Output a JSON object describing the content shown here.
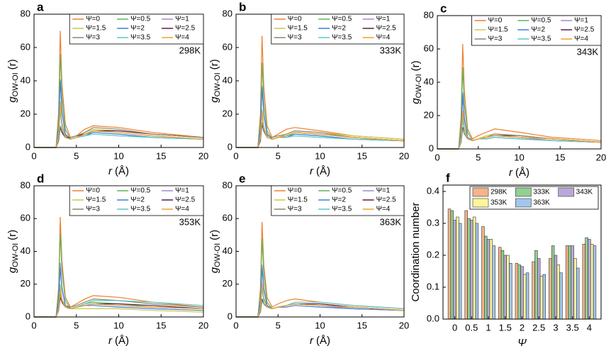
{
  "chart_data": [
    {
      "type": "line",
      "panel_label": "a",
      "annotation": "298K",
      "x_label": {
        "symbol": "r",
        "unit": "(Å)"
      },
      "y_label": {
        "symbol": "g",
        "subscript": "OW-OI",
        "suffix": "(r)"
      },
      "x": [
        0,
        2.6,
        2.9,
        3.1,
        3.3,
        3.7,
        4.3,
        5,
        6,
        7,
        10,
        14,
        20
      ],
      "xlim": [
        0,
        20
      ],
      "ylim": [
        0,
        80
      ],
      "xticks": [
        0,
        5,
        10,
        15,
        20
      ],
      "yticks": [
        0,
        20,
        40,
        60,
        80
      ],
      "legend": "upper right",
      "series": [
        {
          "name": "Ψ=0",
          "color": "#f07d2b",
          "values": [
            0,
            0,
            21,
            70,
            38,
            14,
            6,
            7,
            11,
            13,
            12,
            9,
            6
          ]
        },
        {
          "name": "Ψ=0.5",
          "color": "#5cb85c",
          "values": [
            0,
            0,
            17,
            56,
            31,
            11,
            5,
            6,
            8,
            9,
            8,
            6,
            5
          ]
        },
        {
          "name": "Ψ=1",
          "color": "#a487d0",
          "values": [
            0,
            0,
            12,
            41,
            23,
            8,
            5,
            6,
            8,
            10,
            9,
            7,
            5
          ]
        },
        {
          "name": "Ψ=1.5",
          "color": "#c9c94a",
          "values": [
            0,
            0,
            8,
            28,
            15,
            6,
            5,
            6,
            9,
            11,
            10,
            8,
            6
          ]
        },
        {
          "name": "Ψ=2",
          "color": "#3f7fde",
          "values": [
            0,
            0,
            12,
            40,
            22,
            8,
            5,
            6,
            7,
            9,
            8,
            6,
            5
          ]
        },
        {
          "name": "Ψ=2.5",
          "color": "#5a1e4a",
          "values": [
            0,
            0,
            4,
            12,
            9,
            6,
            6,
            7,
            8,
            10,
            10,
            8,
            6
          ]
        },
        {
          "name": "Ψ=3",
          "color": "#8a8a6a",
          "values": [
            0,
            0,
            4,
            13,
            10,
            7,
            6,
            7,
            9,
            12,
            11,
            8,
            6
          ]
        },
        {
          "name": "Ψ=3.5",
          "color": "#5ac8c8",
          "values": [
            0,
            0,
            7,
            22,
            12,
            6,
            5,
            6,
            7,
            8,
            7,
            6,
            5
          ]
        },
        {
          "name": "Ψ=4",
          "color": "#f0a030",
          "values": [
            0,
            0,
            8,
            27,
            15,
            6,
            5,
            6,
            8,
            10,
            9,
            7,
            5
          ]
        }
      ]
    },
    {
      "type": "line",
      "panel_label": "b",
      "annotation": "333K",
      "x_label": {
        "symbol": "r",
        "unit": "(Å)"
      },
      "y_label": {
        "symbol": "g",
        "subscript": "OW-OI",
        "suffix": "(r)"
      },
      "x": [
        0,
        2.6,
        2.9,
        3.1,
        3.3,
        3.7,
        4.3,
        5,
        6,
        7,
        10,
        14,
        20
      ],
      "xlim": [
        0,
        20
      ],
      "ylim": [
        0,
        80
      ],
      "xticks": [
        0,
        5,
        10,
        15,
        20
      ],
      "yticks": [
        0,
        20,
        40,
        60,
        80
      ],
      "legend": "upper right",
      "series": [
        {
          "name": "Ψ=0",
          "color": "#f07d2b",
          "values": [
            0,
            0,
            20,
            67,
            37,
            13,
            6,
            8,
            11,
            12,
            10,
            7,
            5
          ]
        },
        {
          "name": "Ψ=0.5",
          "color": "#5cb85c",
          "values": [
            0,
            0,
            15,
            51,
            28,
            10,
            5,
            6,
            7,
            8,
            7,
            5,
            4
          ]
        },
        {
          "name": "Ψ=1",
          "color": "#a487d0",
          "values": [
            0,
            0,
            11,
            37,
            20,
            8,
            5,
            6,
            7,
            9,
            8,
            6,
            4
          ]
        },
        {
          "name": "Ψ=1.5",
          "color": "#c9c94a",
          "values": [
            0,
            0,
            7,
            23,
            13,
            6,
            5,
            6,
            8,
            10,
            9,
            7,
            5
          ]
        },
        {
          "name": "Ψ=2",
          "color": "#3f7fde",
          "values": [
            0,
            0,
            11,
            36,
            20,
            8,
            5,
            6,
            6,
            8,
            7,
            5,
            4
          ]
        },
        {
          "name": "Ψ=2.5",
          "color": "#5a1e4a",
          "values": [
            0,
            0,
            4,
            14,
            10,
            6,
            5,
            6,
            7,
            9,
            8,
            6,
            4
          ]
        },
        {
          "name": "Ψ=3",
          "color": "#8a8a6a",
          "values": [
            0,
            0,
            5,
            15,
            11,
            7,
            6,
            7,
            8,
            10,
            9,
            6,
            4
          ]
        },
        {
          "name": "Ψ=3.5",
          "color": "#5ac8c8",
          "values": [
            0,
            0,
            6,
            20,
            11,
            6,
            5,
            6,
            6,
            7,
            6,
            5,
            4
          ]
        },
        {
          "name": "Ψ=4",
          "color": "#f0a030",
          "values": [
            0,
            0,
            7,
            22,
            12,
            6,
            5,
            6,
            7,
            9,
            8,
            6,
            4
          ]
        }
      ]
    },
    {
      "type": "line",
      "panel_label": "c",
      "annotation": "343K",
      "x_label": {
        "symbol": "r",
        "unit": "(Å)"
      },
      "y_label": {
        "symbol": "g",
        "subscript": "OW-OI",
        "suffix": "(r)"
      },
      "x": [
        0,
        2.6,
        2.9,
        3.1,
        3.3,
        3.7,
        4.3,
        5,
        6,
        7,
        10,
        14,
        20
      ],
      "xlim": [
        0,
        20
      ],
      "ylim": [
        0,
        80
      ],
      "xticks": [
        0,
        5,
        10,
        15,
        20
      ],
      "yticks": [
        0,
        20,
        40,
        60,
        80
      ],
      "legend": "upper right",
      "series": [
        {
          "name": "Ψ=0",
          "color": "#f07d2b",
          "values": [
            0,
            0,
            19,
            63,
            35,
            12,
            6,
            8,
            10,
            12,
            10,
            7,
            5
          ]
        },
        {
          "name": "Ψ=0.5",
          "color": "#5cb85c",
          "values": [
            0,
            0,
            15,
            49,
            27,
            10,
            5,
            6,
            7,
            8,
            7,
            5,
            4
          ]
        },
        {
          "name": "Ψ=1",
          "color": "#a487d0",
          "values": [
            0,
            0,
            10,
            34,
            19,
            7,
            5,
            6,
            7,
            8,
            7,
            5,
            4
          ]
        },
        {
          "name": "Ψ=1.5",
          "color": "#c9c94a",
          "values": [
            0,
            0,
            7,
            22,
            12,
            6,
            5,
            6,
            8,
            9,
            8,
            6,
            4
          ]
        },
        {
          "name": "Ψ=2",
          "color": "#3f7fde",
          "values": [
            0,
            0,
            10,
            33,
            18,
            7,
            5,
            6,
            6,
            7,
            6,
            5,
            4
          ]
        },
        {
          "name": "Ψ=2.5",
          "color": "#5a1e4a",
          "values": [
            0,
            0,
            4,
            13,
            9,
            6,
            5,
            6,
            7,
            8,
            8,
            6,
            4
          ]
        },
        {
          "name": "Ψ=3",
          "color": "#8a8a6a",
          "values": [
            0,
            0,
            4,
            12,
            9,
            6,
            5,
            6,
            7,
            9,
            8,
            6,
            4
          ]
        },
        {
          "name": "Ψ=3.5",
          "color": "#5ac8c8",
          "values": [
            0,
            0,
            5,
            18,
            10,
            6,
            5,
            6,
            6,
            7,
            6,
            5,
            4
          ]
        },
        {
          "name": "Ψ=4",
          "color": "#f0a030",
          "values": [
            0,
            0,
            7,
            23,
            13,
            6,
            5,
            6,
            7,
            8,
            7,
            6,
            4
          ]
        }
      ]
    },
    {
      "type": "line",
      "panel_label": "d",
      "annotation": "353K",
      "x_label": {
        "symbol": "r",
        "unit": "(Å)"
      },
      "y_label": {
        "symbol": "g",
        "subscript": "OW-OI",
        "suffix": "(r)"
      },
      "x": [
        0,
        2.6,
        2.9,
        3.1,
        3.3,
        3.7,
        4.3,
        5,
        6,
        7,
        10,
        14,
        20
      ],
      "xlim": [
        0,
        20
      ],
      "ylim": [
        0,
        80
      ],
      "xticks": [
        0,
        5,
        10,
        15,
        20
      ],
      "yticks": [
        0,
        20,
        40,
        60,
        80
      ],
      "legend": "upper right",
      "series": [
        {
          "name": "Ψ=0",
          "color": "#f07d2b",
          "values": [
            0,
            0,
            18,
            61,
            34,
            12,
            6,
            8,
            11,
            13,
            12,
            9,
            6
          ]
        },
        {
          "name": "Ψ=0.5",
          "color": "#5cb85c",
          "values": [
            0,
            0,
            15,
            51,
            28,
            10,
            5,
            6,
            8,
            9,
            8,
            6,
            5
          ]
        },
        {
          "name": "Ψ=1",
          "color": "#a487d0",
          "values": [
            0,
            0,
            10,
            33,
            18,
            7,
            5,
            6,
            7,
            8,
            7,
            6,
            5
          ]
        },
        {
          "name": "Ψ=1.5",
          "color": "#c9c94a",
          "values": [
            0,
            0,
            6,
            20,
            11,
            6,
            5,
            5,
            5,
            5,
            5,
            4,
            3
          ]
        },
        {
          "name": "Ψ=2",
          "color": "#3f7fde",
          "values": [
            0,
            0,
            9,
            30,
            17,
            7,
            5,
            6,
            7,
            7,
            6,
            5,
            4
          ]
        },
        {
          "name": "Ψ=2.5",
          "color": "#5a1e4a",
          "values": [
            0,
            0,
            4,
            12,
            9,
            6,
            5,
            6,
            7,
            8,
            8,
            7,
            5
          ]
        },
        {
          "name": "Ψ=3",
          "color": "#8a8a6a",
          "values": [
            0,
            0,
            4,
            14,
            10,
            7,
            6,
            7,
            9,
            11,
            10,
            8,
            6
          ]
        },
        {
          "name": "Ψ=3.5",
          "color": "#5ac8c8",
          "values": [
            0,
            0,
            5,
            18,
            10,
            6,
            5,
            6,
            8,
            10,
            10,
            9,
            7
          ]
        },
        {
          "name": "Ψ=4",
          "color": "#f0a030",
          "values": [
            0,
            0,
            5,
            17,
            10,
            6,
            5,
            6,
            7,
            8,
            7,
            6,
            5
          ]
        }
      ]
    },
    {
      "type": "line",
      "panel_label": "e",
      "annotation": "363K",
      "x_label": {
        "symbol": "r",
        "unit": "(Å)"
      },
      "y_label": {
        "symbol": "g",
        "subscript": "OW-OI",
        "suffix": "(r)"
      },
      "x": [
        0,
        2.6,
        2.9,
        3.1,
        3.3,
        3.7,
        4.3,
        5,
        6,
        7,
        10,
        14,
        20
      ],
      "xlim": [
        0,
        20
      ],
      "ylim": [
        0,
        80
      ],
      "xticks": [
        0,
        5,
        10,
        15,
        20
      ],
      "yticks": [
        0,
        20,
        40,
        60,
        80
      ],
      "legend": "upper right",
      "series": [
        {
          "name": "Ψ=0",
          "color": "#f07d2b",
          "values": [
            0,
            0,
            17,
            58,
            32,
            12,
            6,
            8,
            10,
            11,
            9,
            7,
            5
          ]
        },
        {
          "name": "Ψ=0.5",
          "color": "#5cb85c",
          "values": [
            0,
            0,
            14,
            48,
            26,
            9,
            5,
            6,
            7,
            8,
            7,
            5,
            4
          ]
        },
        {
          "name": "Ψ=1",
          "color": "#a487d0",
          "values": [
            0,
            0,
            10,
            32,
            18,
            7,
            5,
            6,
            7,
            8,
            7,
            5,
            4
          ]
        },
        {
          "name": "Ψ=1.5",
          "color": "#c9c94a",
          "values": [
            0,
            0,
            6,
            20,
            11,
            6,
            5,
            6,
            7,
            8,
            7,
            6,
            4
          ]
        },
        {
          "name": "Ψ=2",
          "color": "#3f7fde",
          "values": [
            0,
            0,
            9,
            30,
            17,
            7,
            5,
            6,
            6,
            7,
            6,
            5,
            4
          ]
        },
        {
          "name": "Ψ=2.5",
          "color": "#5a1e4a",
          "values": [
            0,
            0,
            3,
            11,
            8,
            6,
            5,
            6,
            7,
            8,
            8,
            6,
            4
          ]
        },
        {
          "name": "Ψ=3",
          "color": "#8a8a6a",
          "values": [
            0,
            0,
            3,
            10,
            8,
            6,
            5,
            6,
            7,
            8,
            7,
            6,
            4
          ]
        },
        {
          "name": "Ψ=3.5",
          "color": "#5ac8c8",
          "values": [
            0,
            0,
            5,
            17,
            10,
            6,
            5,
            6,
            7,
            9,
            9,
            7,
            5
          ]
        },
        {
          "name": "Ψ=4",
          "color": "#f0a030",
          "values": [
            0,
            0,
            6,
            21,
            12,
            6,
            5,
            6,
            7,
            8,
            7,
            6,
            4
          ]
        }
      ]
    },
    {
      "type": "bar",
      "panel_label": "f",
      "x_label": "Ψ",
      "y_label": "Coordination number",
      "categories": [
        "0",
        "0.5",
        "1",
        "1.5",
        "2",
        "2.5",
        "3",
        "3.5",
        "4"
      ],
      "ylim": [
        0,
        0.42
      ],
      "yticks": [
        {
          "value": 0,
          "label": "0.0"
        },
        0.1,
        0.2,
        0.3,
        0.4
      ],
      "legend": "top",
      "series": [
        {
          "name": "298K",
          "color": "#f5b48a",
          "values": [
            0.345,
            0.34,
            0.29,
            0.225,
            0.175,
            0.18,
            0.19,
            0.23,
            0.235
          ]
        },
        {
          "name": "333K",
          "color": "#90d090",
          "values": [
            0.34,
            0.315,
            0.26,
            0.215,
            0.17,
            0.215,
            0.23,
            0.23,
            0.255
          ]
        },
        {
          "name": "343K",
          "color": "#b9a9d8",
          "values": [
            0.31,
            0.31,
            0.25,
            0.2,
            0.165,
            0.19,
            0.2,
            0.23,
            0.25
          ]
        },
        {
          "name": "353K",
          "color": "#fbf59a",
          "values": [
            0.32,
            0.32,
            0.25,
            0.2,
            0.14,
            0.135,
            0.17,
            0.19,
            0.235
          ]
        },
        {
          "name": "363K",
          "color": "#a4c6ec",
          "values": [
            0.3,
            0.3,
            0.23,
            0.175,
            0.145,
            0.14,
            0.145,
            0.16,
            0.23
          ]
        }
      ]
    }
  ]
}
